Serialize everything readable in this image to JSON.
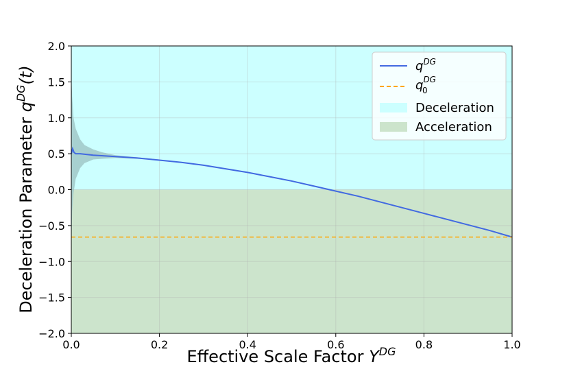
{
  "chart_data": {
    "type": "line",
    "title": "",
    "xlabel": "Effective Scale Factor ",
    "xlabel_var": "Y",
    "xlabel_sup": "DG",
    "ylabel": "Deceleration Parameter ",
    "ylabel_var": "q",
    "ylabel_sup": "DG",
    "ylabel_arg": "(t)",
    "xlim": [
      0.0,
      1.0
    ],
    "ylim": [
      -2.0,
      2.0
    ],
    "x_ticks": [
      "0.0",
      "0.2",
      "0.4",
      "0.6",
      "0.8",
      "1.0"
    ],
    "y_ticks": [
      "−2.0",
      "−1.5",
      "−1.0",
      "−0.5",
      "0.0",
      "0.5",
      "1.0",
      "1.5",
      "2.0"
    ],
    "grid": true,
    "legend_position": "upper-right",
    "regions": [
      {
        "name": "Deceleration",
        "y_range": [
          0.0,
          2.0
        ],
        "color": "#ccffff"
      },
      {
        "name": "Acceleration",
        "y_range": [
          -2.0,
          0.0
        ],
        "color": "#cce4cc"
      }
    ],
    "series": [
      {
        "name": "q",
        "name_sup": "DG",
        "style": "solid",
        "color": "#4169e1",
        "x": [
          0.0,
          0.003,
          0.006,
          0.01,
          0.02,
          0.05,
          0.1,
          0.15,
          0.2,
          0.25,
          0.3,
          0.35,
          0.4,
          0.45,
          0.5,
          0.55,
          0.6,
          0.65,
          0.7,
          0.75,
          0.8,
          0.85,
          0.9,
          0.95,
          1.0
        ],
        "y": [
          0.5,
          0.57,
          0.52,
          0.5,
          0.5,
          0.48,
          0.46,
          0.44,
          0.41,
          0.38,
          0.34,
          0.29,
          0.24,
          0.18,
          0.12,
          0.05,
          -0.02,
          -0.09,
          -0.17,
          -0.25,
          -0.33,
          -0.41,
          -0.49,
          -0.57,
          -0.66
        ]
      },
      {
        "name": "q",
        "name_sup": "DG",
        "name_sub": "0",
        "style": "dashed",
        "color": "#ffa500",
        "x": [
          0.0,
          1.0
        ],
        "y": [
          -0.66,
          -0.66
        ]
      }
    ],
    "uncertainty_band": {
      "color": "#a0c8c8",
      "x": [
        0.0005,
        0.002,
        0.005,
        0.01,
        0.02,
        0.03,
        0.05,
        0.07,
        0.1,
        0.15,
        0.2
      ],
      "upper": [
        1.5,
        1.3,
        1.0,
        0.85,
        0.7,
        0.62,
        0.56,
        0.52,
        0.48,
        0.45,
        0.42
      ],
      "lower": [
        -0.7,
        -0.3,
        -0.05,
        0.15,
        0.3,
        0.37,
        0.42,
        0.43,
        0.44,
        0.43,
        0.41
      ]
    }
  }
}
